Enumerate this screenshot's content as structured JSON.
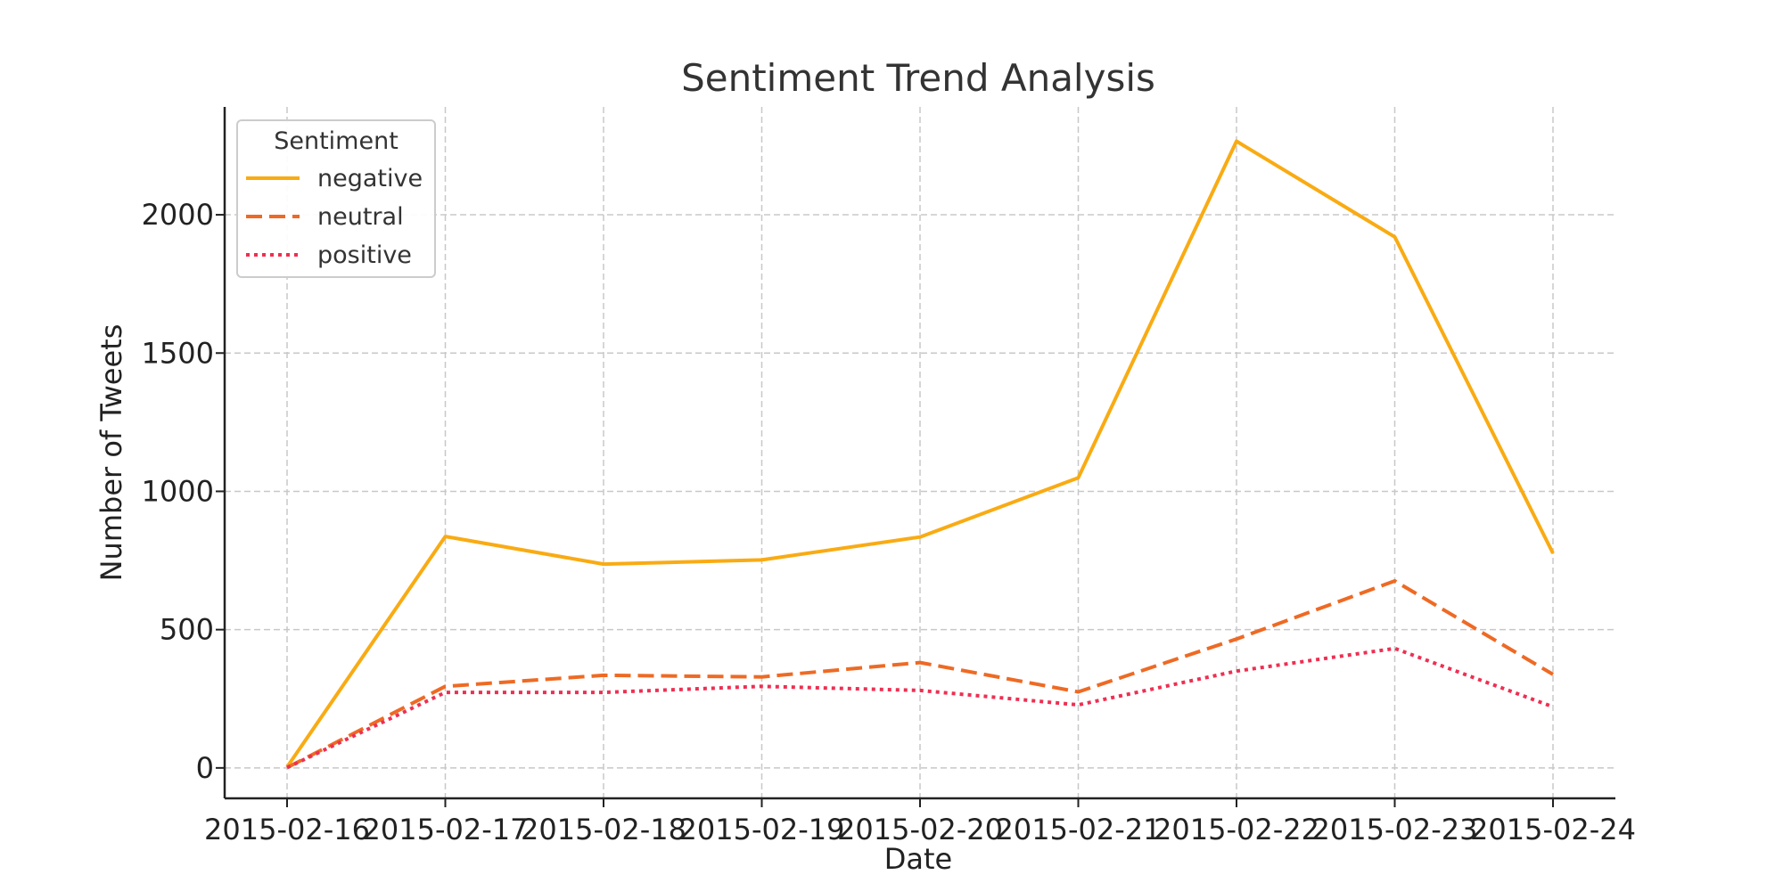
{
  "chart_data": {
    "type": "line",
    "title": "Sentiment Trend Analysis",
    "xlabel": "Date",
    "ylabel": "Number of Tweets",
    "categories": [
      "2015-02-16",
      "2015-02-17",
      "2015-02-18",
      "2015-02-19",
      "2015-02-20",
      "2015-02-21",
      "2015-02-22",
      "2015-02-23",
      "2015-02-24"
    ],
    "ylim": [
      -110,
      2390
    ],
    "yticks": [
      0,
      500,
      1000,
      1500,
      2000
    ],
    "grid": true,
    "legend": {
      "title": "Sentiment",
      "placement": "top-left"
    },
    "series": [
      {
        "name": "negative",
        "color": "#f9ab13",
        "line_style": "solid",
        "values": [
          3,
          837,
          737,
          752,
          835,
          1049,
          2266,
          1920,
          776
        ]
      },
      {
        "name": "neutral",
        "color": "#ee6a24",
        "line_style": "dashed",
        "values": [
          1,
          295,
          335,
          329,
          381,
          275,
          466,
          676,
          338
        ]
      },
      {
        "name": "positive",
        "color": "#ee2f52",
        "line_style": "dotted",
        "values": [
          1,
          273,
          273,
          295,
          280,
          228,
          350,
          432,
          221
        ]
      }
    ]
  }
}
